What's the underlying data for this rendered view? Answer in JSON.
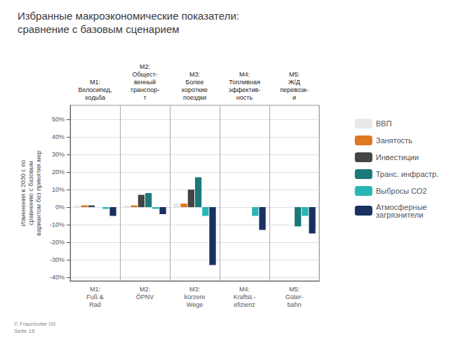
{
  "chart_data": {
    "type": "bar",
    "title": "Избранные макроэкономические показатели:\nсравнение с базовым сценарием",
    "ylabel": "Изменения к 2030 г. по\nсравнению с базовым\nвариантом без принятия мер",
    "categories": [
      "M1:\nFuß &\nRad",
      "M2:\nÖPNV",
      "M3:\nkürzere\nWege",
      "M4:\nKraftst.-\nefizienz",
      "M5:\nGüter-\nbahn"
    ],
    "categories_top": [
      "M1:\nВелосипед,\nходьба",
      "M2:\nОбщест-\nвенный\nтранспор-\nт",
      "M3:\nБолее\nкороткие\nпоездки",
      "M4:\nТопливная\nэффектив-\nность",
      "M5:\nЖ/Д\nперевозк-\nи"
    ],
    "series": [
      {
        "name": "ВВП",
        "color": "#e8e8e8",
        "values": [
          1,
          1,
          2,
          0,
          0
        ]
      },
      {
        "name": "Занятость",
        "color": "#e07820",
        "values": [
          1,
          1,
          2,
          0,
          0
        ]
      },
      {
        "name": "Инвестиции",
        "color": "#444444",
        "values": [
          1,
          7,
          10,
          0,
          0
        ]
      },
      {
        "name": "Транс. инфрастр.",
        "color": "#1a7a7a",
        "values": [
          0,
          8,
          17,
          0,
          -11
        ]
      },
      {
        "name": "Выбросы СО2",
        "color": "#2ab5b5",
        "values": [
          -1,
          -1,
          -5,
          -5,
          -5
        ]
      },
      {
        "name": "Атмосферные\nзагрязнители",
        "color": "#1a3060",
        "values": [
          -5,
          -4,
          -33,
          -13,
          -15
        ]
      }
    ],
    "ylim": [
      -42,
      58
    ],
    "yticks": [
      {
        "value": -40,
        "label": "-40%"
      },
      {
        "value": -30,
        "label": "-30%"
      },
      {
        "value": -20,
        "label": "-20%"
      },
      {
        "value": -10,
        "label": "-10%"
      },
      {
        "value": 0,
        "label": "0%"
      },
      {
        "value": 10,
        "label": "10%"
      },
      {
        "value": 20,
        "label": "20%"
      },
      {
        "value": 30,
        "label": "30%"
      },
      {
        "value": 40,
        "label": "40%"
      },
      {
        "value": 50,
        "label": "50%"
      }
    ],
    "grid": true,
    "legend": "right",
    "annotations": [
      "© Fraunhofer ISI\nSeite 16"
    ]
  }
}
